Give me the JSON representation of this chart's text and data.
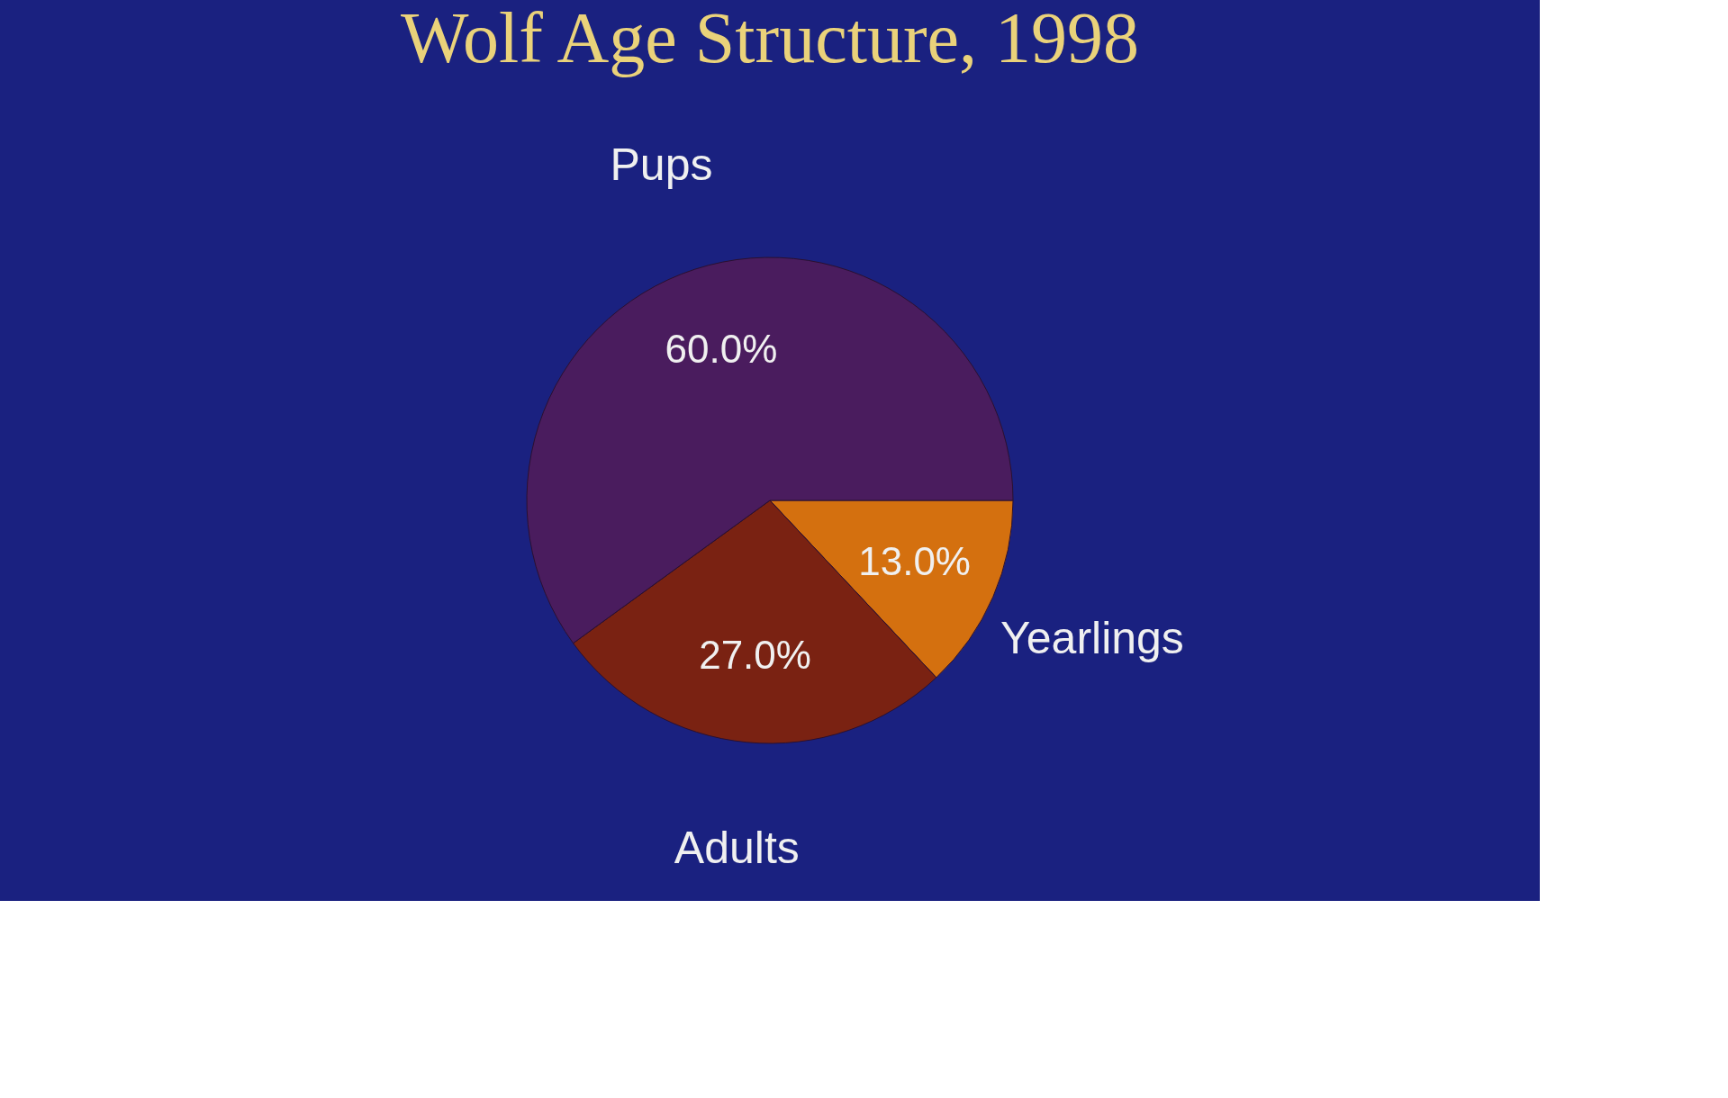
{
  "chart_data": {
    "type": "pie",
    "title": "Wolf Age Structure, 1998",
    "categories": [
      "Yearlings",
      "Adults",
      "Pups"
    ],
    "values": [
      13,
      27,
      60
    ],
    "colors": [
      "#d4700f",
      "#7a2212",
      "#4a1c5e"
    ],
    "value_labels": [
      "13.0%",
      "27.0%",
      "60.0%"
    ],
    "legend": false
  }
}
